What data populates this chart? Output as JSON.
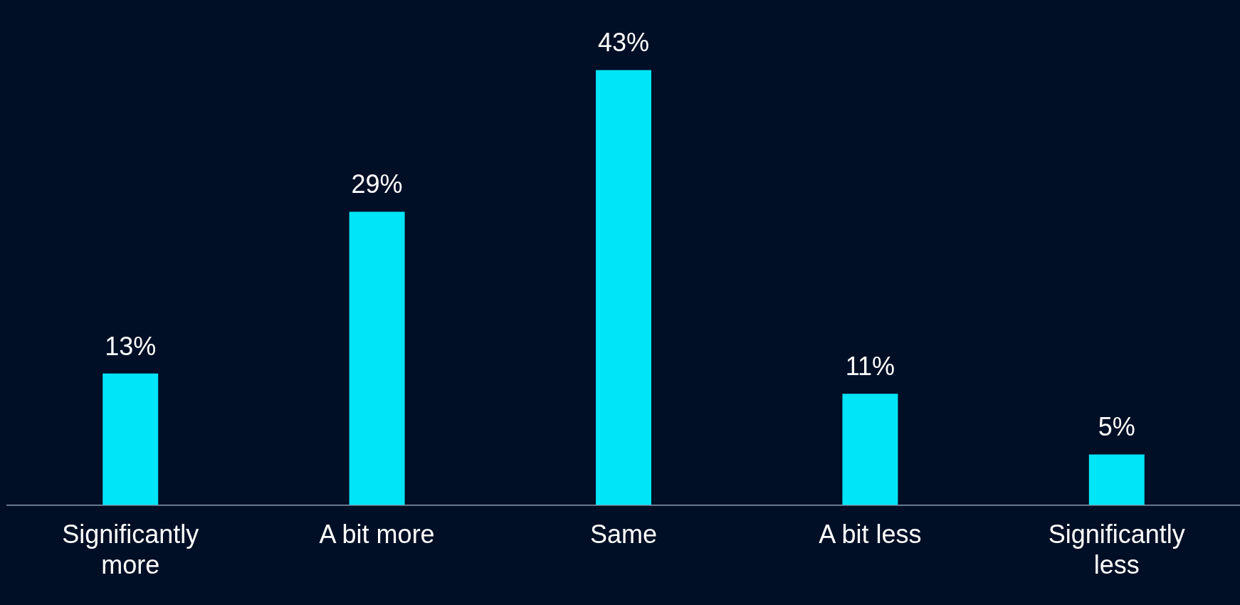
{
  "chart_data": {
    "type": "bar",
    "categories": [
      "Significantly more",
      "A bit more",
      "Same",
      "A bit less",
      "Significantly less"
    ],
    "values": [
      13,
      29,
      43,
      11,
      5
    ],
    "value_labels": [
      "13%",
      "29%",
      "43%",
      "11%",
      "5%"
    ],
    "color": "#00e5f7"
  }
}
